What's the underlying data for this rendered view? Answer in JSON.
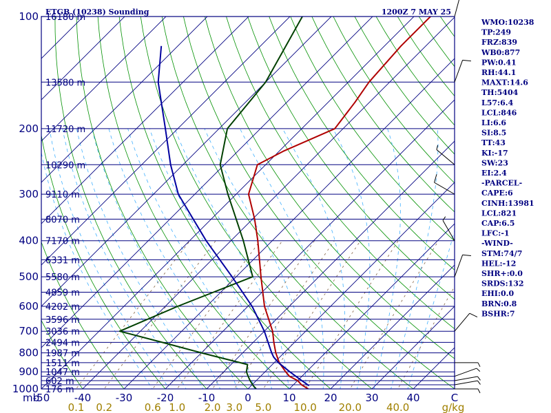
{
  "header": {
    "station": "ETGB (10238) Sounding",
    "time": "1200Z  7 MAY 25"
  },
  "indices": [
    "WMO:10238",
    "TP:249",
    "FRZ:839",
    "WB0:877",
    "PW:0.41",
    "RH:44.1",
    "MAXT:14.6",
    "TH:5404",
    "L57:6.4",
    "LCL:846",
    "LI:6.6",
    "SI:8.5",
    "TT:43",
    "KI:-17",
    "SW:23",
    "EI:2.4",
    "-PARCEL-",
    "CAPE:6",
    "CINH:13981",
    "LCL:821",
    "CAP:6.5",
    "LFC:-1",
    "-WIND-",
    "STM:74/7",
    "HEL:-12",
    "SHR+:0.0",
    "SRDS:132",
    "EHI:0.0",
    "BRN:0.8",
    "BSHR:7"
  ],
  "colors": {
    "background": "#ffffff",
    "frame": "#000080",
    "isobar": "#000080",
    "isotherm": "#000080",
    "dry_adiabat": "#009000",
    "moist_adiabat": "#40b0ff",
    "mixing_ratio": "#806040",
    "temperature": "#b00000",
    "dewpoint": "#004000",
    "parcel": "#0000a0",
    "wind_barb": "#000000"
  },
  "chart_data": {
    "type": "line",
    "subtype": "skew-T log-p",
    "log_pressure_axis": true,
    "pressure_range_mb": [
      1000,
      100
    ],
    "pressure_ticks_mb": [
      100,
      200,
      300,
      400,
      500,
      600,
      700,
      800,
      900,
      1000
    ],
    "pressure_tick_labels": [
      "100",
      "200",
      "300",
      "400",
      "500",
      "600",
      "700",
      "800",
      "900",
      "1000"
    ],
    "pressure_unit_label": "mb",
    "temperature_ticks_c": [
      -50,
      -40,
      -30,
      -20,
      -10,
      0,
      10,
      20,
      30,
      40
    ],
    "temperature_tick_labels": [
      "-50",
      "-40",
      "-30",
      "-20",
      "-10",
      "0",
      "10",
      "20",
      "30",
      "40"
    ],
    "temperature_unit_label": "C",
    "mixing_ratio_ticks": [
      0.1,
      0.2,
      0.6,
      1.0,
      2.0,
      3.0,
      5.0,
      10.0,
      20.0,
      40.0
    ],
    "mixing_ratio_labels": [
      "0.1",
      "0.2",
      "0.6",
      "1.0",
      "2.0",
      "3.0",
      "5.0",
      "10.0",
      "20.0",
      "40.0"
    ],
    "mixing_ratio_unit_label": "g/kg",
    "isobars_mb": [
      100,
      150,
      200,
      250,
      300,
      350,
      400,
      450,
      500,
      550,
      600,
      650,
      700,
      750,
      800,
      850,
      900,
      925,
      950,
      975,
      1000
    ],
    "height_labels": [
      {
        "p": 100,
        "label": "16180 m"
      },
      {
        "p": 150,
        "label": "13580 m"
      },
      {
        "p": 200,
        "label": "11720 m"
      },
      {
        "p": 250,
        "label": "10290 m"
      },
      {
        "p": 300,
        "label": "9110 m"
      },
      {
        "p": 350,
        "label": "8070 m"
      },
      {
        "p": 400,
        "label": "7170 m"
      },
      {
        "p": 450,
        "label": "6331 m"
      },
      {
        "p": 500,
        "label": "5580 m"
      },
      {
        "p": 550,
        "label": "4859 m"
      },
      {
        "p": 600,
        "label": "4202 m"
      },
      {
        "p": 650,
        "label": "3596 m"
      },
      {
        "p": 700,
        "label": "3036 m"
      },
      {
        "p": 750,
        "label": "2494 m"
      },
      {
        "p": 800,
        "label": "1987 m"
      },
      {
        "p": 850,
        "label": "1511 m"
      },
      {
        "p": 900,
        "label": "1047 m"
      },
      {
        "p": 950,
        "label": "602 m"
      },
      {
        "p": 1000,
        "label": "176 m"
      }
    ],
    "series": [
      {
        "id": "temperature",
        "points": [
          {
            "p": 1000,
            "t": 14.6
          },
          {
            "p": 975,
            "t": 12.0
          },
          {
            "p": 950,
            "t": 10.0
          },
          {
            "p": 925,
            "t": 7.0
          },
          {
            "p": 900,
            "t": 5.0
          },
          {
            "p": 850,
            "t": 1.2
          },
          {
            "p": 800,
            "t": -2.0
          },
          {
            "p": 750,
            "t": -5.0
          },
          {
            "p": 700,
            "t": -8.0
          },
          {
            "p": 600,
            "t": -16.0
          },
          {
            "p": 500,
            "t": -24.0
          },
          {
            "p": 400,
            "t": -33.5
          },
          {
            "p": 350,
            "t": -39.5
          },
          {
            "p": 300,
            "t": -47.0
          },
          {
            "p": 250,
            "t": -52.0
          },
          {
            "p": 230,
            "t": -49.0
          },
          {
            "p": 200,
            "t": -42.0
          },
          {
            "p": 170,
            "t": -43.5
          },
          {
            "p": 150,
            "t": -45.0
          },
          {
            "p": 120,
            "t": -46.0
          },
          {
            "p": 100,
            "t": -46.0
          }
        ]
      },
      {
        "id": "dewpoint",
        "points": [
          {
            "p": 1000,
            "t": 2.0
          },
          {
            "p": 980,
            "t": 0.5
          },
          {
            "p": 950,
            "t": -1.5
          },
          {
            "p": 925,
            "t": -3.0
          },
          {
            "p": 900,
            "t": -4.5
          },
          {
            "p": 860,
            "t": -6.0
          },
          {
            "p": 800,
            "t": -20.0
          },
          {
            "p": 750,
            "t": -32.0
          },
          {
            "p": 700,
            "t": -45.0
          },
          {
            "p": 600,
            "t": -37.0
          },
          {
            "p": 500,
            "t": -26.0
          },
          {
            "p": 400,
            "t": -37.0
          },
          {
            "p": 300,
            "t": -52.0
          },
          {
            "p": 250,
            "t": -61.0
          },
          {
            "p": 200,
            "t": -68.0
          },
          {
            "p": 150,
            "t": -70.0
          },
          {
            "p": 100,
            "t": -77.0
          }
        ]
      },
      {
        "id": "parcel",
        "points": [
          {
            "p": 980,
            "t": 14.0
          },
          {
            "p": 950,
            "t": 11.0
          },
          {
            "p": 900,
            "t": 6.0
          },
          {
            "p": 850,
            "t": 1.0
          },
          {
            "p": 821,
            "t": -1.5
          },
          {
            "p": 800,
            "t": -3.0
          },
          {
            "p": 700,
            "t": -10.0
          },
          {
            "p": 600,
            "t": -19.0
          },
          {
            "p": 500,
            "t": -31.0
          },
          {
            "p": 400,
            "t": -46.0
          },
          {
            "p": 300,
            "t": -64.0
          },
          {
            "p": 250,
            "t": -73.0
          },
          {
            "p": 200,
            "t": -83.0
          },
          {
            "p": 150,
            "t": -96.0
          },
          {
            "p": 120,
            "t": -104.0
          }
        ]
      }
    ],
    "wind_barbs": [
      {
        "p": 1000,
        "speed_kt": 5,
        "dir_deg": 90
      },
      {
        "p": 975,
        "speed_kt": 5,
        "dir_deg": 80
      },
      {
        "p": 950,
        "speed_kt": 5,
        "dir_deg": 80
      },
      {
        "p": 925,
        "speed_kt": 5,
        "dir_deg": 70
      },
      {
        "p": 850,
        "speed_kt": 5,
        "dir_deg": 90
      },
      {
        "p": 700,
        "speed_kt": 10,
        "dir_deg": 40
      },
      {
        "p": 500,
        "speed_kt": 10,
        "dir_deg": 20
      },
      {
        "p": 400,
        "speed_kt": 5,
        "dir_deg": 330
      },
      {
        "p": 300,
        "speed_kt": 10,
        "dir_deg": 300
      },
      {
        "p": 250,
        "speed_kt": 5,
        "dir_deg": 310
      },
      {
        "p": 150,
        "speed_kt": 10,
        "dir_deg": 20
      },
      {
        "p": 100,
        "speed_kt": 10,
        "dir_deg": 15
      }
    ]
  }
}
